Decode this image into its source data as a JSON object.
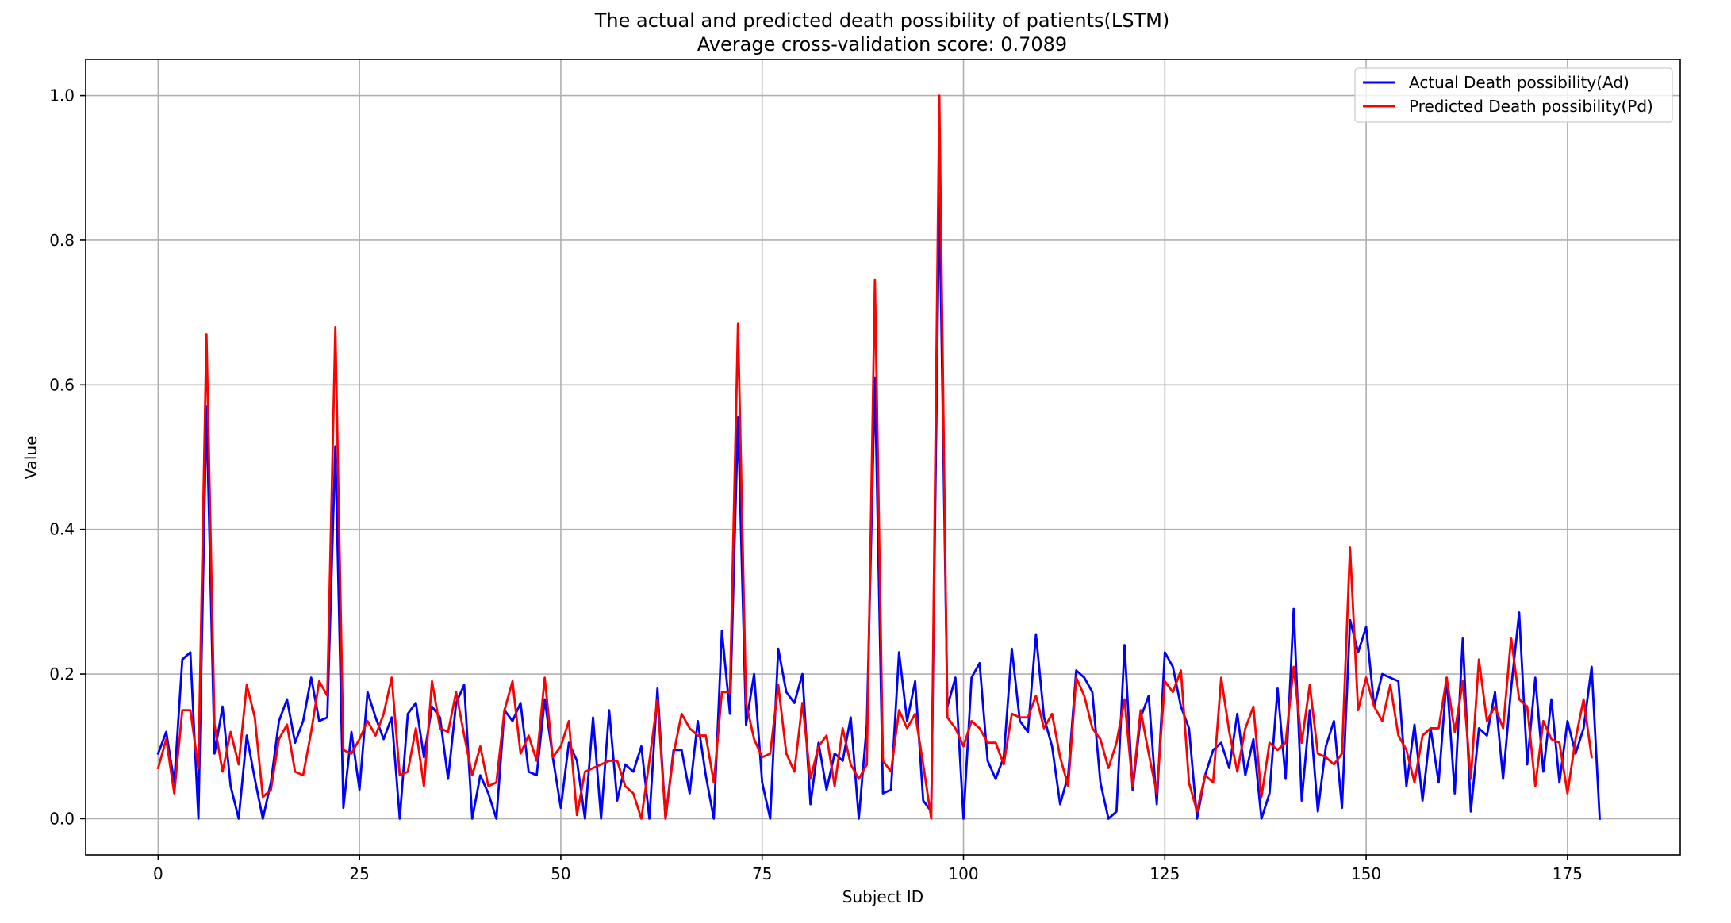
{
  "chart_data": {
    "type": "line",
    "title": "The actual and predicted death possibility of patients(LSTM)",
    "subtitle": "Average cross-validation score: 0.7089",
    "xlabel": "Subject ID",
    "ylabel": "Value",
    "xlim": [
      -9,
      189
    ],
    "ylim": [
      -0.05,
      1.05
    ],
    "xticks": [
      0,
      25,
      50,
      75,
      100,
      125,
      150,
      175
    ],
    "yticks": [
      0.0,
      0.2,
      0.4,
      0.6,
      0.8,
      1.0
    ],
    "xtick_labels": [
      "0",
      "25",
      "50",
      "75",
      "100",
      "125",
      "150",
      "175"
    ],
    "ytick_labels": [
      "0.0",
      "0.2",
      "0.4",
      "0.6",
      "0.8",
      "1.0"
    ],
    "grid": true,
    "legend_position": "top-right",
    "series": [
      {
        "name": "Actual Death possibility(Ad)",
        "color": "#0000ff",
        "values": [
          0.09,
          0.12,
          0.05,
          0.22,
          0.23,
          0.0,
          0.57,
          0.09,
          0.155,
          0.045,
          0.0,
          0.115,
          0.055,
          0.0,
          0.05,
          0.135,
          0.165,
          0.105,
          0.135,
          0.195,
          0.135,
          0.14,
          0.515,
          0.015,
          0.12,
          0.04,
          0.175,
          0.14,
          0.11,
          0.14,
          0.0,
          0.145,
          0.16,
          0.085,
          0.155,
          0.14,
          0.055,
          0.16,
          0.185,
          0.0,
          0.06,
          0.035,
          0.0,
          0.15,
          0.135,
          0.16,
          0.065,
          0.06,
          0.165,
          0.085,
          0.015,
          0.105,
          0.08,
          0.0,
          0.14,
          0.0,
          0.15,
          0.025,
          0.075,
          0.065,
          0.1,
          0.0,
          0.18,
          0.0,
          0.095,
          0.095,
          0.035,
          0.135,
          0.06,
          0.0,
          0.26,
          0.145,
          0.555,
          0.13,
          0.2,
          0.05,
          0.0,
          0.235,
          0.175,
          0.16,
          0.2,
          0.02,
          0.105,
          0.04,
          0.09,
          0.08,
          0.14,
          0.0,
          0.13,
          0.61,
          0.035,
          0.04,
          0.23,
          0.135,
          0.19,
          0.025,
          0.01,
          0.865,
          0.155,
          0.195,
          0.0,
          0.195,
          0.215,
          0.08,
          0.055,
          0.085,
          0.235,
          0.135,
          0.12,
          0.255,
          0.14,
          0.1,
          0.02,
          0.06,
          0.205,
          0.195,
          0.175,
          0.05,
          0.0,
          0.01,
          0.24,
          0.04,
          0.14,
          0.17,
          0.02,
          0.23,
          0.21,
          0.155,
          0.125,
          0.0,
          0.06,
          0.095,
          0.105,
          0.07,
          0.145,
          0.06,
          0.11,
          0.0,
          0.035,
          0.18,
          0.055,
          0.29,
          0.025,
          0.15,
          0.01,
          0.1,
          0.135,
          0.015,
          0.275,
          0.23,
          0.265,
          0.155,
          0.2,
          0.195,
          0.19,
          0.045,
          0.13,
          0.025,
          0.125,
          0.05,
          0.195,
          0.035,
          0.25,
          0.01,
          0.125,
          0.115,
          0.175,
          0.055,
          0.18,
          0.285,
          0.075,
          0.195,
          0.065,
          0.165,
          0.05,
          0.135,
          0.09,
          0.125,
          0.21,
          0.0
        ]
      },
      {
        "name": "Predicted Death possibility(Pd)",
        "color": "#ff0000",
        "values": [
          0.07,
          0.11,
          0.035,
          0.15,
          0.15,
          0.07,
          0.67,
          0.13,
          0.065,
          0.12,
          0.075,
          0.185,
          0.14,
          0.03,
          0.04,
          0.11,
          0.13,
          0.065,
          0.06,
          0.12,
          0.19,
          0.17,
          0.68,
          0.095,
          0.09,
          0.11,
          0.135,
          0.115,
          0.145,
          0.195,
          0.06,
          0.065,
          0.125,
          0.045,
          0.19,
          0.125,
          0.12,
          0.175,
          0.115,
          0.06,
          0.1,
          0.045,
          0.05,
          0.15,
          0.19,
          0.09,
          0.115,
          0.08,
          0.195,
          0.085,
          0.1,
          0.135,
          0.005,
          0.065,
          0.07,
          0.075,
          0.08,
          0.08,
          0.045,
          0.035,
          0.0,
          0.08,
          0.165,
          0.0,
          0.09,
          0.145,
          0.125,
          0.115,
          0.115,
          0.05,
          0.175,
          0.175,
          0.685,
          0.16,
          0.11,
          0.085,
          0.09,
          0.185,
          0.09,
          0.065,
          0.16,
          0.055,
          0.1,
          0.115,
          0.045,
          0.125,
          0.075,
          0.055,
          0.075,
          0.745,
          0.08,
          0.065,
          0.15,
          0.125,
          0.145,
          0.075,
          0.0,
          1.0,
          0.14,
          0.125,
          0.1,
          0.135,
          0.125,
          0.105,
          0.105,
          0.075,
          0.145,
          0.14,
          0.14,
          0.17,
          0.125,
          0.145,
          0.085,
          0.045,
          0.195,
          0.17,
          0.125,
          0.11,
          0.07,
          0.105,
          0.165,
          0.045,
          0.15,
          0.09,
          0.035,
          0.19,
          0.175,
          0.205,
          0.05,
          0.01,
          0.06,
          0.05,
          0.195,
          0.12,
          0.065,
          0.125,
          0.155,
          0.03,
          0.105,
          0.095,
          0.105,
          0.21,
          0.105,
          0.185,
          0.09,
          0.085,
          0.075,
          0.09,
          0.375,
          0.15,
          0.195,
          0.155,
          0.135,
          0.185,
          0.115,
          0.095,
          0.05,
          0.115,
          0.125,
          0.125,
          0.195,
          0.12,
          0.19,
          0.055,
          0.22,
          0.135,
          0.155,
          0.125,
          0.25,
          0.165,
          0.155,
          0.045,
          0.135,
          0.11,
          0.105,
          0.035,
          0.11,
          0.165,
          0.085
        ]
      }
    ]
  }
}
